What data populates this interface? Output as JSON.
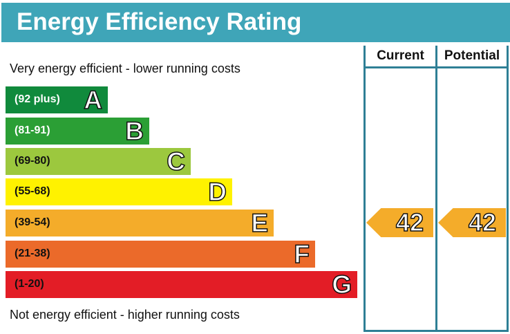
{
  "title": "Energy Efficiency Rating",
  "columns": {
    "current": "Current",
    "potential": "Potential"
  },
  "top_note": "Very energy efficient - lower running costs",
  "bottom_note": "Not energy efficient - higher running costs",
  "chart_data": {
    "type": "bar",
    "bands": [
      {
        "letter": "A",
        "range": "(92 plus)",
        "color": "#108a3c",
        "label_color": "#ffffff"
      },
      {
        "letter": "B",
        "range": "(81-91)",
        "color": "#2b9f35",
        "label_color": "#ffffff"
      },
      {
        "letter": "C",
        "range": "(69-80)",
        "color": "#9cc83e",
        "label_color": "#111111"
      },
      {
        "letter": "D",
        "range": "(55-68)",
        "color": "#fff200",
        "label_color": "#111111"
      },
      {
        "letter": "E",
        "range": "(39-54)",
        "color": "#f4ac2a",
        "label_color": "#111111"
      },
      {
        "letter": "F",
        "range": "(21-38)",
        "color": "#eb6a2a",
        "label_color": "#111111"
      },
      {
        "letter": "G",
        "range": "(1-20)",
        "color": "#e31d26",
        "label_color": "#111111"
      }
    ],
    "current": {
      "value": "42",
      "band": "E",
      "color": "#f4ac2a"
    },
    "potential": {
      "value": "42",
      "band": "E",
      "color": "#f4ac2a"
    }
  }
}
